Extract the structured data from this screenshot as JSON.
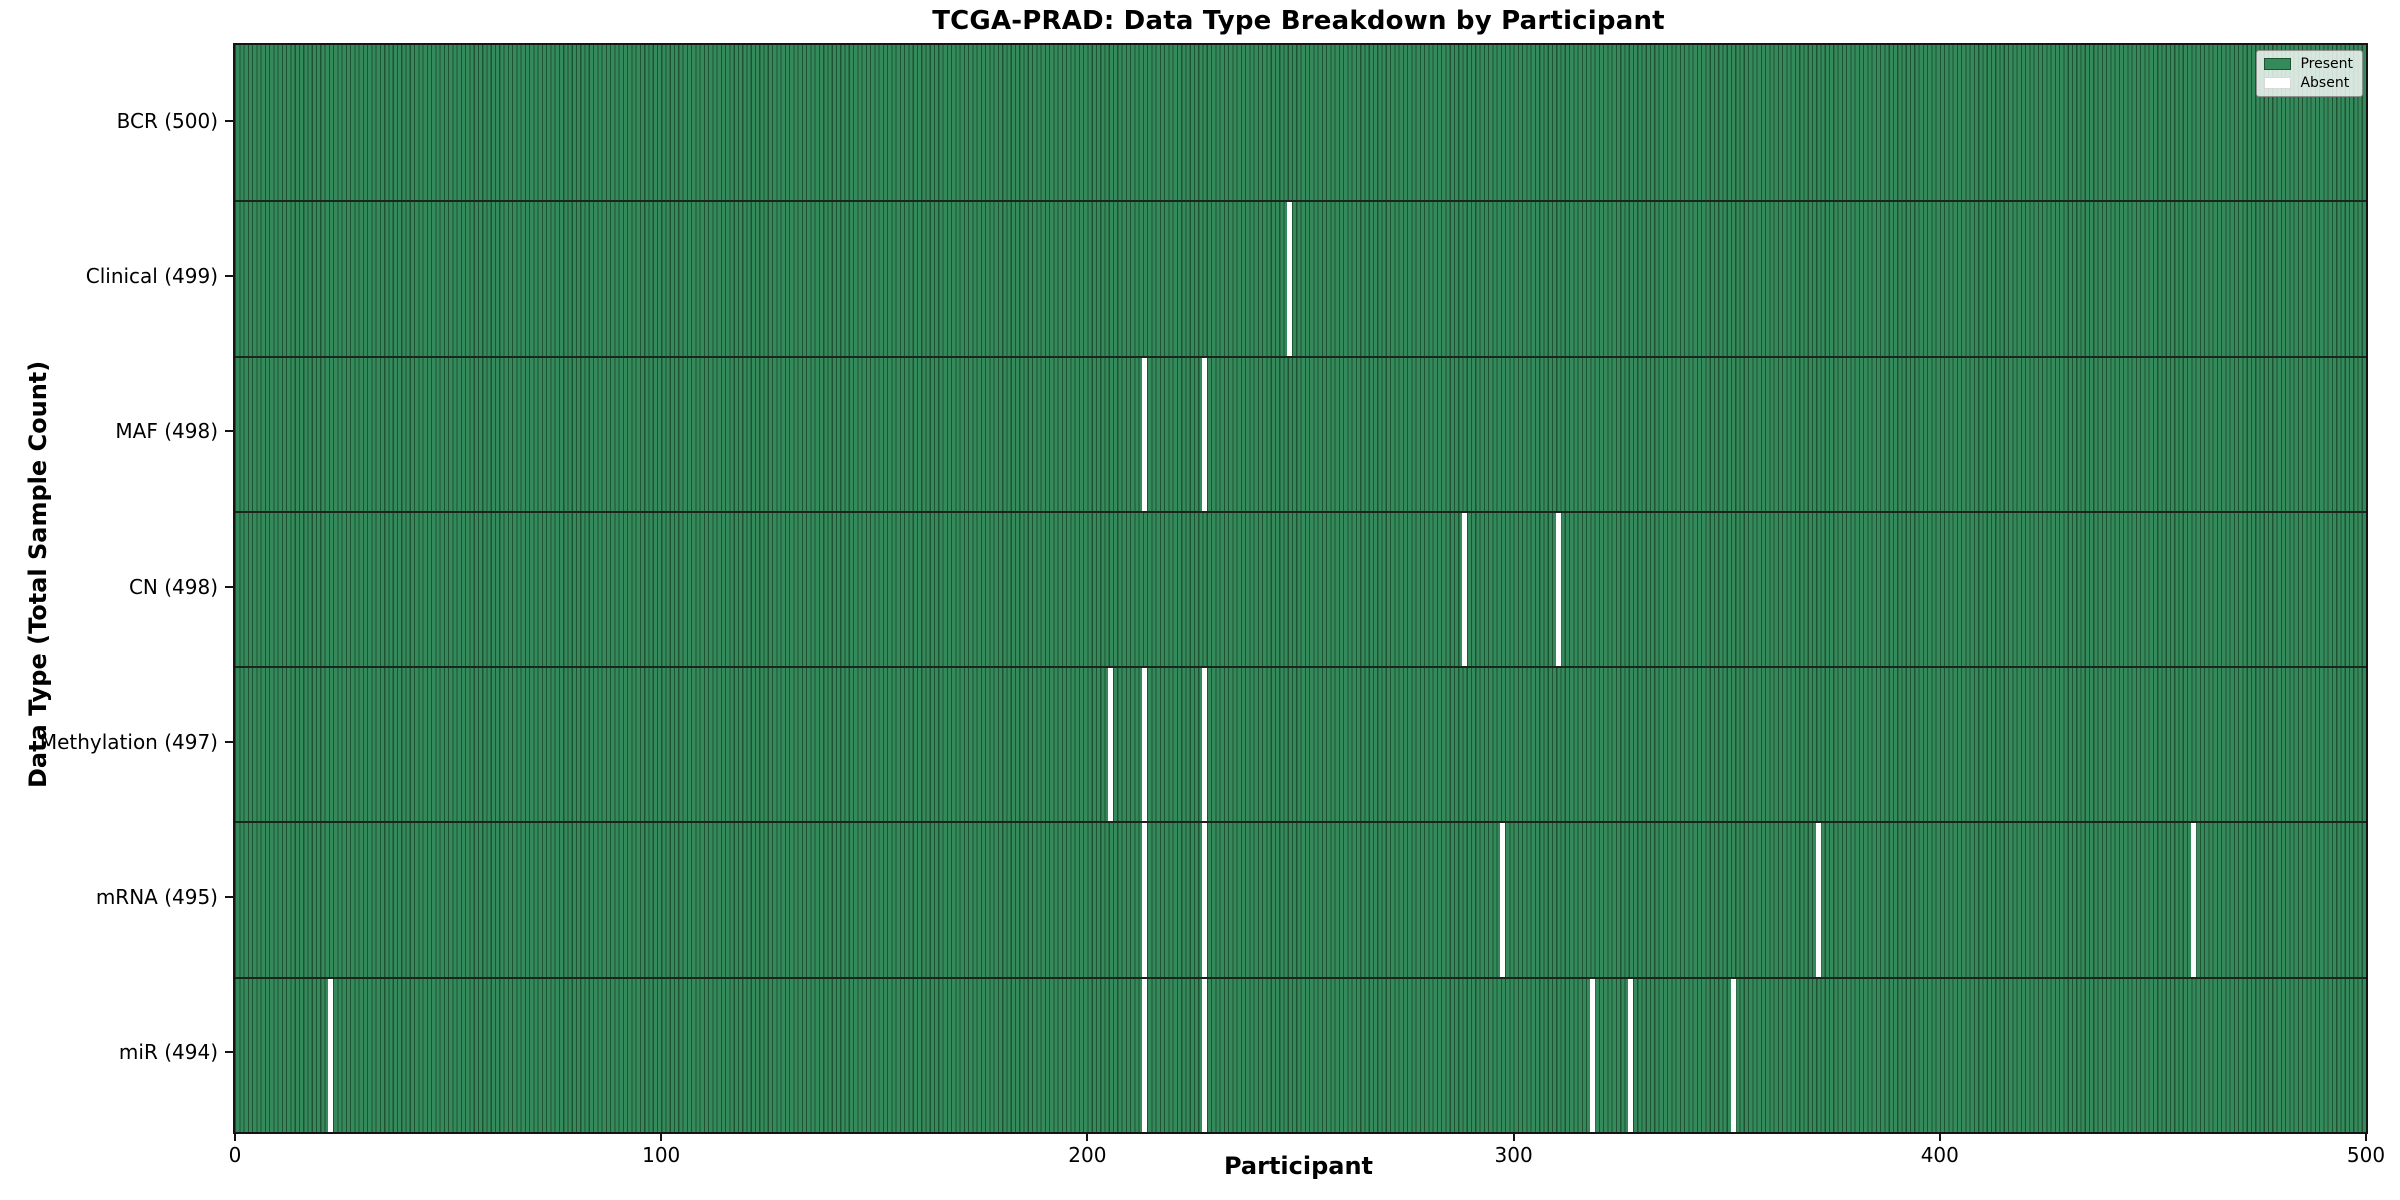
{
  "chart_data": {
    "type": "heatmap",
    "title": "TCGA-PRAD: Data Type Breakdown by Participant",
    "xlabel": "Participant",
    "ylabel": "Data Type (Total Sample Count)",
    "x_range": [
      0,
      500
    ],
    "x_ticks": [
      "0",
      "100",
      "200",
      "300",
      "400",
      "500"
    ],
    "n_participants": 500,
    "grid": false,
    "legend_position": "upper right",
    "legend_items": [
      {
        "label": "Present",
        "color": "#348a5b"
      },
      {
        "label": "Absent",
        "color": "#ffffff"
      }
    ],
    "rows": [
      {
        "label": "BCR (500)",
        "total_samples": 500,
        "absent_participants": []
      },
      {
        "label": "Clinical (499)",
        "total_samples": 499,
        "absent_participants": [
          247
        ]
      },
      {
        "label": "MAF (498)",
        "total_samples": 498,
        "absent_participants": [
          213,
          227
        ]
      },
      {
        "label": "CN (498)",
        "total_samples": 498,
        "absent_participants": [
          288,
          310
        ]
      },
      {
        "label": "Methylation (497)",
        "total_samples": 497,
        "absent_participants": [
          205,
          213,
          227
        ]
      },
      {
        "label": "mRNA (495)",
        "total_samples": 495,
        "absent_participants": [
          213,
          227,
          297,
          371,
          459
        ]
      },
      {
        "label": "miR (494)",
        "total_samples": 494,
        "absent_participants": [
          22,
          213,
          227,
          318,
          327,
          351
        ]
      }
    ],
    "colors": {
      "present_fill": "#348a5b",
      "bar_edge": "#1f5233",
      "absent": "#ffffff",
      "row_separator": "#1b241d",
      "spine": "#141414"
    }
  }
}
